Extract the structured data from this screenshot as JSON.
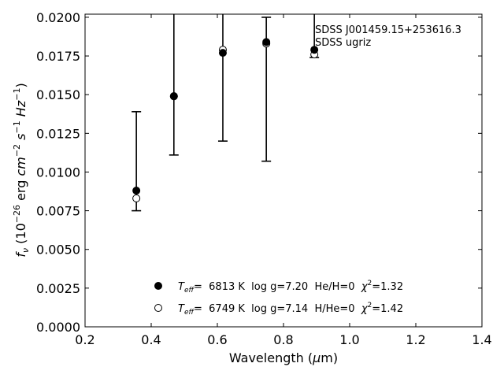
{
  "chart_data": {
    "type": "scatter",
    "xlabel": "Wavelength (μm)",
    "ylabel": "f_ν (10^-26 erg cm^-2 s^-1 Hz^-1)",
    "xlim": [
      0.2,
      1.4
    ],
    "ylim": [
      0.0,
      0.0202
    ],
    "xticks": [
      "0.2",
      "0.4",
      "0.6",
      "0.8",
      "1.0",
      "1.2",
      "1.4"
    ],
    "yticks": [
      "0.0000",
      "0.0025",
      "0.0050",
      "0.0075",
      "0.0100",
      "0.0125",
      "0.0150",
      "0.0175",
      "0.0200"
    ],
    "grid": false,
    "annotations": [
      "SDSS J001459.15+253616.3",
      "SDSS ugriz"
    ],
    "observed": {
      "x": [
        0.3551,
        0.4686,
        0.6166,
        0.748,
        0.8932
      ],
      "y": [
        0.0088,
        0.0149,
        0.0177,
        0.0184,
        0.0179
      ],
      "yerr_low": [
        0.0075,
        0.0111,
        0.012,
        0.0107,
        0.0174
      ],
      "yerr_high": [
        0.0139,
        0.0202,
        0.0202,
        0.02,
        0.0202
      ]
    },
    "series": [
      {
        "name": "Teff= 6813 K  log g=7.20  He/H=0  χ²=1.32",
        "marker": "filled-circle",
        "x": [
          0.3551,
          0.4686,
          0.6166,
          0.748,
          0.8932
        ],
        "y": [
          0.0088,
          0.0149,
          0.0177,
          0.0184,
          0.0179
        ]
      },
      {
        "name": "Teff= 6749 K  log g=7.14  H/He=0  χ²=1.42",
        "marker": "open-circle",
        "x": [
          0.3551,
          0.4686,
          0.6166,
          0.748,
          0.8932
        ],
        "y": [
          0.0083,
          0.0149,
          0.0179,
          0.0183,
          0.0176
        ]
      }
    ],
    "legend": {
      "placement": "lower-center",
      "entries": [
        {
          "teff_label": "T",
          "teff_sub": "eff",
          "rest": "=  6813 K  log g=7.20  He/H=0  ",
          "chi": "χ",
          "chi_sup": "2",
          "chi_val": "=1.32"
        },
        {
          "teff_label": "T",
          "teff_sub": "eff",
          "rest": "=  6749 K  log g=7.14  H/He=0  ",
          "chi": "χ",
          "chi_sup": "2",
          "chi_val": "=1.42"
        }
      ]
    }
  }
}
